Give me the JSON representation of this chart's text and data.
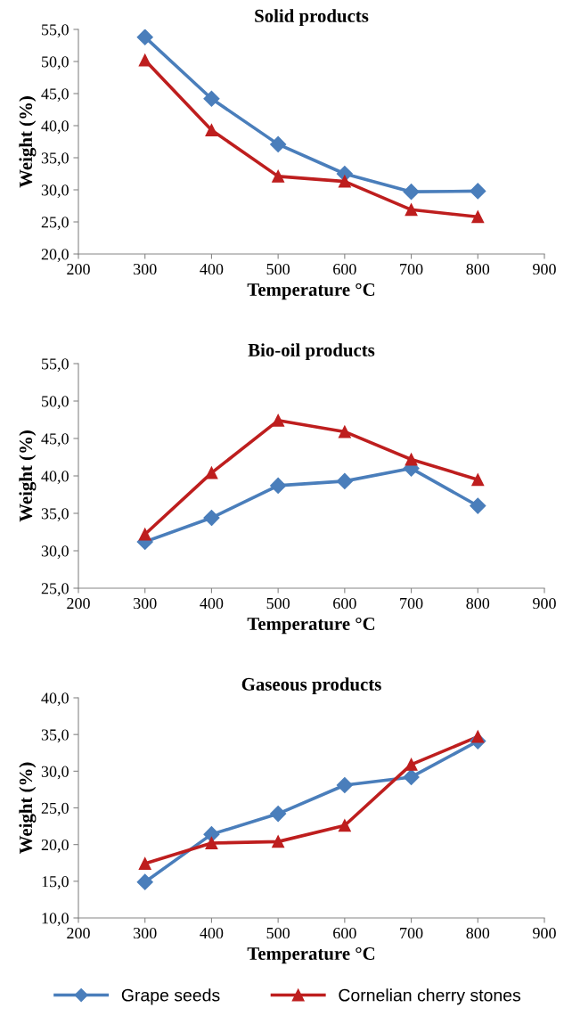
{
  "chart_data": [
    {
      "type": "line",
      "title": "Solid products",
      "xlabel": "Temperature °C",
      "ylabel": "Weight (%)",
      "x": [
        300,
        400,
        500,
        600,
        700,
        800
      ],
      "series": [
        {
          "color": "#4a7ebb",
          "marker": "diamond",
          "values": [
            53.8,
            44.2,
            37.1,
            32.5,
            29.7,
            29.8
          ]
        },
        {
          "color": "#be1e1e",
          "marker": "triangle",
          "values": [
            50.2,
            39.3,
            32.1,
            31.3,
            26.9,
            25.8
          ]
        }
      ],
      "xlim": [
        200,
        900
      ],
      "xticks": [
        200,
        300,
        400,
        500,
        600,
        700,
        800,
        900
      ],
      "ylim": [
        20,
        55
      ],
      "yticks": [
        {
          "value": 20,
          "label": "20,0"
        },
        {
          "value": 25,
          "label": "25,0"
        },
        {
          "value": 30,
          "label": "30,0"
        },
        {
          "value": 35,
          "label": "35,0"
        },
        {
          "value": 40,
          "label": "40,0"
        },
        {
          "value": 45,
          "label": "45,0"
        },
        {
          "value": 50,
          "label": "50,0"
        },
        {
          "value": 55,
          "label": "55,0"
        }
      ],
      "grid": false,
      "legend": false
    },
    {
      "type": "line",
      "title": "Bio-oil products",
      "xlabel": "Temperature °C",
      "ylabel": "Weight (%)",
      "x": [
        300,
        400,
        500,
        600,
        700,
        800
      ],
      "series": [
        {
          "color": "#4a7ebb",
          "marker": "diamond",
          "values": [
            31.2,
            34.4,
            38.7,
            39.3,
            41.0,
            36.0
          ]
        },
        {
          "color": "#be1e1e",
          "marker": "triangle",
          "values": [
            32.2,
            40.4,
            47.4,
            45.9,
            42.2,
            39.5
          ]
        }
      ],
      "xlim": [
        200,
        900
      ],
      "xticks": [
        200,
        300,
        400,
        500,
        600,
        700,
        800,
        900
      ],
      "ylim": [
        25,
        55
      ],
      "yticks": [
        {
          "value": 25,
          "label": "25,0"
        },
        {
          "value": 30,
          "label": "30,0"
        },
        {
          "value": 35,
          "label": "35,0"
        },
        {
          "value": 40,
          "label": "40,0"
        },
        {
          "value": 45,
          "label": "45,0"
        },
        {
          "value": 50,
          "label": "50,0"
        },
        {
          "value": 55,
          "label": "55,0"
        }
      ],
      "grid": false,
      "legend": false
    },
    {
      "type": "line",
      "title": "Gaseous products",
      "xlabel": "Temperature °C",
      "ylabel": "Weight (%)",
      "x": [
        300,
        400,
        500,
        600,
        700,
        800
      ],
      "series": [
        {
          "name": "Grape seeds",
          "color": "#4a7ebb",
          "marker": "diamond",
          "values": [
            14.9,
            21.4,
            24.2,
            28.1,
            29.2,
            34.1
          ]
        },
        {
          "name": "Cornelian cherry stones",
          "color": "#be1e1e",
          "marker": "triangle",
          "values": [
            17.4,
            20.2,
            20.4,
            22.6,
            30.9,
            34.7
          ]
        }
      ],
      "xlim": [
        200,
        900
      ],
      "xticks": [
        200,
        300,
        400,
        500,
        600,
        700,
        800,
        900
      ],
      "ylim": [
        10,
        40
      ],
      "yticks": [
        {
          "value": 10,
          "label": "10,0"
        },
        {
          "value": 15,
          "label": "15,0"
        },
        {
          "value": 20,
          "label": "20,0"
        },
        {
          "value": 25,
          "label": "25,0"
        },
        {
          "value": 30,
          "label": "30,0"
        },
        {
          "value": 35,
          "label": "35,0"
        },
        {
          "value": 40,
          "label": "40,0"
        }
      ],
      "grid": false,
      "legend": "bottom"
    }
  ]
}
